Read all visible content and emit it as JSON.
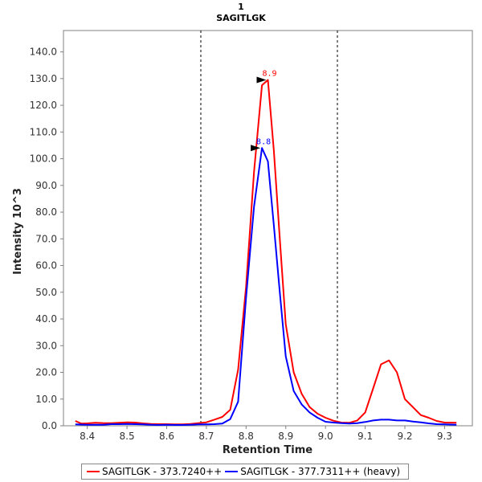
{
  "chart_data": {
    "type": "line",
    "title": "1",
    "subtitle": "SAGITLGK",
    "xlabel": "Retention Time",
    "ylabel": "Intensity 10^3",
    "xlim": [
      8.34,
      9.37
    ],
    "ylim": [
      0,
      148
    ],
    "x_ticks": [
      8.4,
      8.5,
      8.6,
      8.7,
      8.8,
      8.9,
      9.0,
      9.1,
      9.2,
      9.3
    ],
    "x_tick_labels": [
      "8.4",
      "8.5",
      "8.6",
      "8.7",
      "8.8",
      "8.9",
      "9.0",
      "9.1",
      "9.2",
      "9.3"
    ],
    "y_ticks": [
      0,
      10,
      20,
      30,
      40,
      50,
      60,
      70,
      80,
      90,
      100,
      110,
      120,
      130,
      140
    ],
    "y_tick_labels": [
      "0.0",
      "10.0",
      "20.0",
      "30.0",
      "40.0",
      "50.0",
      "60.0",
      "70.0",
      "80.0",
      "90.0",
      "100.0",
      "110.0",
      "120.0",
      "130.0",
      "140.0"
    ],
    "integration_bounds": [
      8.686,
      9.03
    ],
    "series": [
      {
        "name": "SAGITLGK - 373.7240++",
        "color": "#ff0000",
        "peak_label": "8.9",
        "peak_x": 8.855,
        "peak_y": 129.5,
        "x": [
          8.37,
          8.385,
          8.4,
          8.42,
          8.44,
          8.46,
          8.48,
          8.5,
          8.52,
          8.54,
          8.56,
          8.58,
          8.6,
          8.62,
          8.64,
          8.66,
          8.68,
          8.7,
          8.72,
          8.74,
          8.76,
          8.78,
          8.8,
          8.82,
          8.84,
          8.855,
          8.87,
          8.885,
          8.9,
          8.92,
          8.94,
          8.96,
          8.98,
          9.0,
          9.02,
          9.04,
          9.06,
          9.08,
          9.1,
          9.12,
          9.14,
          9.16,
          9.18,
          9.2,
          9.22,
          9.24,
          9.26,
          9.28,
          9.3,
          9.33
        ],
        "values": [
          1.8,
          0.8,
          0.9,
          1.1,
          1.0,
          1.0,
          1.1,
          1.3,
          1.2,
          0.9,
          0.7,
          0.6,
          0.6,
          0.5,
          0.5,
          0.7,
          1.0,
          1.3,
          2.3,
          3.3,
          6.0,
          21.0,
          52.0,
          95.0,
          127.5,
          129.5,
          103.0,
          70.0,
          38.0,
          20.0,
          12.0,
          7.0,
          4.5,
          3.0,
          1.9,
          1.2,
          1.1,
          2.0,
          5.0,
          14.0,
          23.0,
          24.5,
          20.0,
          10.0,
          7.0,
          4.0,
          3.0,
          1.8,
          1.2,
          1.1
        ]
      },
      {
        "name": "SAGITLGK - 377.7311++ (heavy)",
        "color": "#0000ff",
        "peak_label": "8.8",
        "peak_x": 8.84,
        "peak_y": 104.0,
        "x": [
          8.37,
          8.4,
          8.42,
          8.44,
          8.46,
          8.48,
          8.5,
          8.52,
          8.54,
          8.56,
          8.58,
          8.6,
          8.62,
          8.64,
          8.66,
          8.68,
          8.7,
          8.72,
          8.74,
          8.76,
          8.78,
          8.8,
          8.82,
          8.84,
          8.855,
          8.87,
          8.885,
          8.9,
          8.92,
          8.94,
          8.96,
          8.98,
          9.0,
          9.02,
          9.04,
          9.06,
          9.08,
          9.1,
          9.12,
          9.14,
          9.16,
          9.18,
          9.2,
          9.22,
          9.24,
          9.26,
          9.28,
          9.3,
          9.33
        ],
        "values": [
          0.5,
          0.4,
          0.4,
          0.4,
          0.6,
          0.6,
          0.7,
          0.6,
          0.5,
          0.4,
          0.3,
          0.4,
          0.3,
          0.3,
          0.4,
          0.5,
          0.5,
          0.6,
          0.8,
          2.5,
          9.0,
          48.0,
          82.0,
          104.0,
          99.0,
          75.0,
          50.0,
          26.0,
          13.0,
          8.0,
          5.0,
          3.0,
          1.5,
          1.2,
          1.0,
          0.8,
          1.0,
          1.4,
          2.0,
          2.3,
          2.3,
          2.0,
          2.0,
          1.6,
          1.3,
          0.9,
          0.6,
          0.5,
          0.4
        ]
      }
    ]
  }
}
